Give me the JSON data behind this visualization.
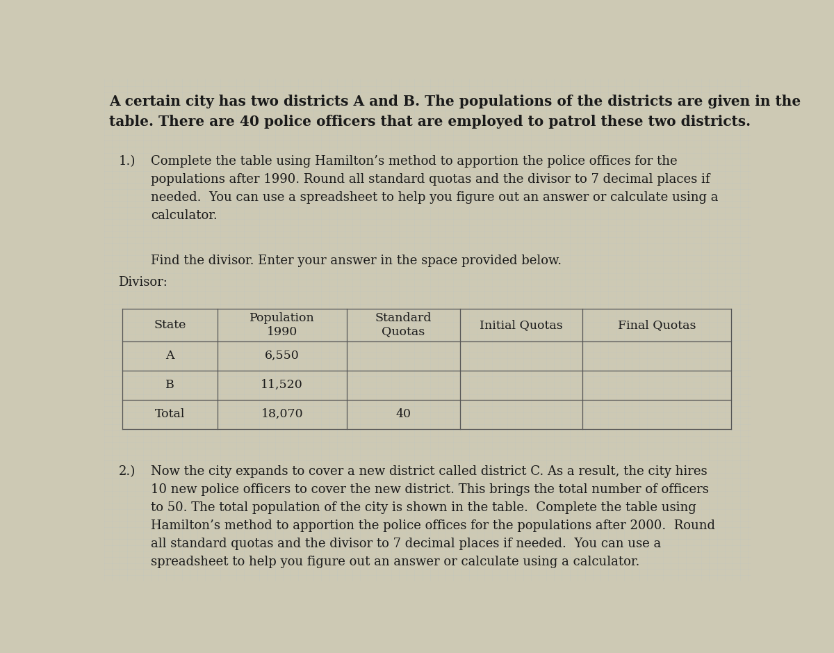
{
  "page_bg": "#cdc9b4",
  "text_color": "#1a1a1a",
  "table_line_color": "#555555",
  "header_font_size": 14.5,
  "body_font_size": 13.0,
  "table_font_size": 12.5,
  "header_text_line1": "A certain city has two districts A and B. The populations of the districts are given in the",
  "header_text_line2": "table. There are 40 police officers that are employed to patrol these two districts.",
  "para1_label": "1.)",
  "para1_indent_lines": [
    "Complete the table using Hamilton’s method to apportion the police offices for the",
    "populations after 1990. Round all standard quotas and the divisor to 7 decimal places if",
    "needed.  You can use a spreadsheet to help you figure out an answer or calculate using a",
    "calculator."
  ],
  "find_divisor_text": "Find the divisor. Enter your answer in the space provided below.",
  "divisor_label": "Divisor:",
  "table1_headers": [
    "State",
    "Population\n1990",
    "Standard\nQuotas",
    "Initial Quotas",
    "Final Quotas"
  ],
  "table1_rows": [
    [
      "A",
      "6,550",
      "",
      "",
      ""
    ],
    [
      "B",
      "11,520",
      "",
      "",
      ""
    ],
    [
      "Total",
      "18,070",
      "40",
      "",
      ""
    ]
  ],
  "para2_label": "2.)",
  "para2_indent_lines": [
    "Now the city expands to cover a new district called district C. As a result, the city hires",
    "10 new police officers to cover the new district. This brings the total number of officers",
    "to 50. The total population of the city is shown in the table.  Complete the table using",
    "Hamilton’s method to apportion the police offices for the populations after 2000.  Round",
    "all standard quotas and the divisor to 7 decimal places if needed.  You can use a",
    "spreadsheet to help you figure out an answer or calculate using a calculator."
  ],
  "col_starts": [
    0.028,
    0.175,
    0.375,
    0.55,
    0.74
  ],
  "col_ends": [
    0.175,
    0.375,
    0.55,
    0.74,
    0.97
  ]
}
